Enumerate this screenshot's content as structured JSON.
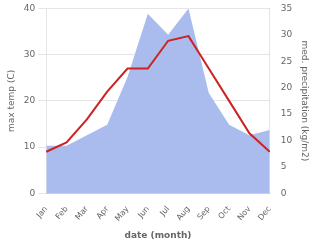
{
  "chart_data": {
    "type": "line",
    "xlabel": "date (month)",
    "ylabel": "max temp (C)",
    "y2label": "med. precipitation (kg/m2)",
    "categories": [
      "Jan",
      "Feb",
      "Mar",
      "Apr",
      "May",
      "Jun",
      "Jul",
      "Aug",
      "Sep",
      "Oct",
      "Nov",
      "Dec"
    ],
    "series": [
      {
        "type": "area",
        "color": "#aabbee",
        "axis": "y2",
        "values": [
          9,
          9,
          11,
          13,
          22,
          34,
          30,
          35,
          19,
          13,
          11,
          12
        ]
      },
      {
        "type": "line",
        "color": "#cc2222",
        "values": [
          9,
          11,
          16,
          22,
          27,
          27,
          33,
          34,
          27,
          20,
          13,
          9
        ]
      }
    ],
    "ylim": [
      0,
      40
    ],
    "yticks": [
      0,
      10,
      20,
      30,
      40
    ],
    "y2lim": [
      0,
      35
    ],
    "y2ticks": [
      0,
      5,
      10,
      15,
      20,
      25,
      30,
      35
    ],
    "grid": true
  }
}
